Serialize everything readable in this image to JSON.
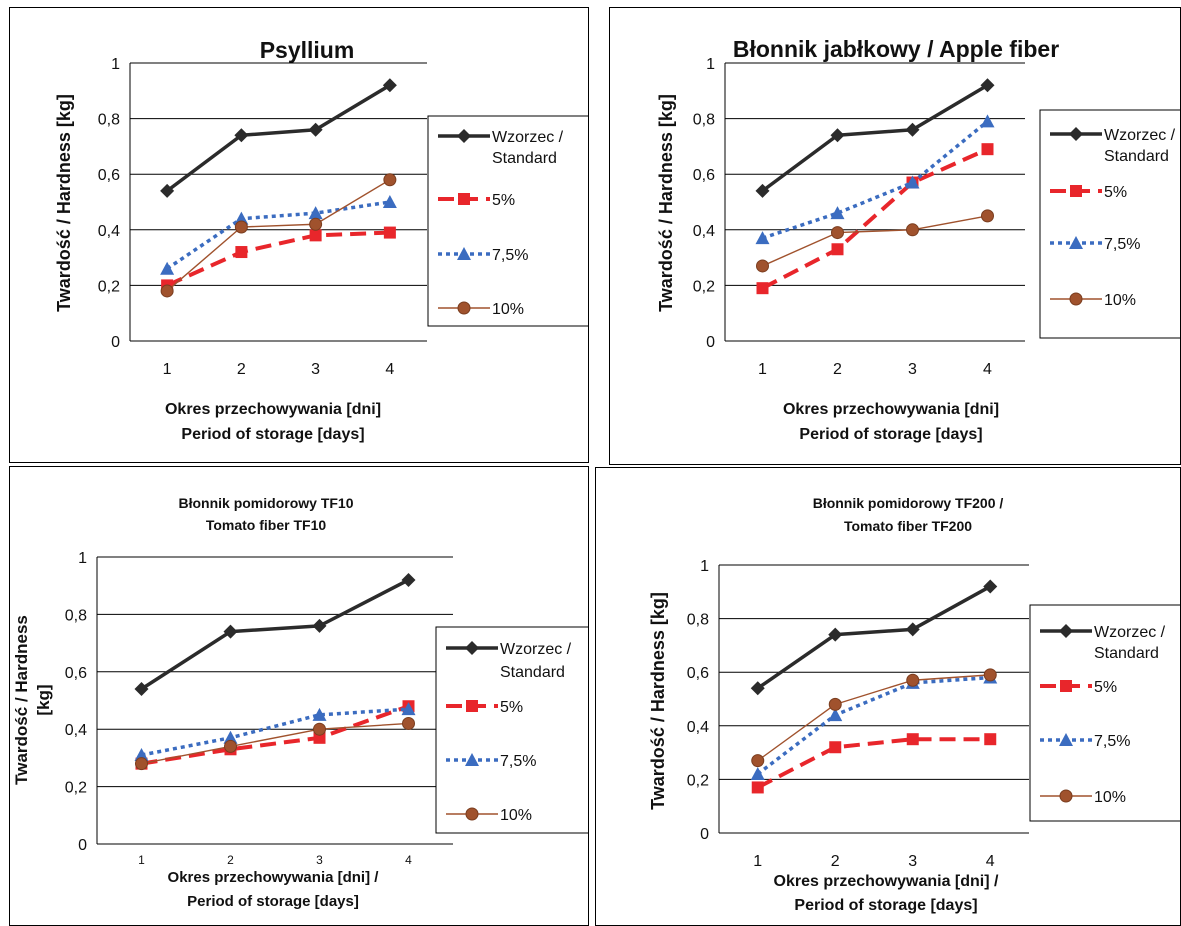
{
  "chart_data": [
    {
      "type": "line",
      "title": "Psyllium",
      "xlabel": [
        "Okres  przechowywania [dni]",
        "Period of storage [days]"
      ],
      "ylabel": [
        "Twardość / Hardness [kg]"
      ],
      "x": [
        "1",
        "2",
        "3",
        "4"
      ],
      "ylim": [
        0,
        1
      ],
      "yticks": [
        "0",
        "0,2",
        "0,4",
        "0,6",
        "0,8",
        "1"
      ],
      "grid": true,
      "legend": "right",
      "series": [
        {
          "name": [
            "Wzorzec /",
            "Standard"
          ],
          "values": [
            0.54,
            0.74,
            0.76,
            0.92
          ],
          "color": "#2b2b2b",
          "dash": "solid",
          "marker": "diamond"
        },
        {
          "name": [
            "5%"
          ],
          "values": [
            0.2,
            0.32,
            0.38,
            0.39
          ],
          "color": "#e8262b",
          "dash": "long",
          "marker": "square"
        },
        {
          "name": [
            "7,5%"
          ],
          "values": [
            0.26,
            0.44,
            0.46,
            0.5
          ],
          "color": "#3b6cc0",
          "dash": "dot",
          "marker": "triangle"
        },
        {
          "name": [
            "10%"
          ],
          "values": [
            0.18,
            0.41,
            0.42,
            0.58
          ],
          "color": "#a0522d",
          "dash": "thin",
          "marker": "circle"
        }
      ]
    },
    {
      "type": "line",
      "title": "Błonnik jabłkowy / Apple fiber",
      "xlabel": [
        "Okres  przechowywania [dni]",
        "Period of storage [days]"
      ],
      "ylabel": [
        "Twardość / Hardness [kg]"
      ],
      "x": [
        "1",
        "2",
        "3",
        "4"
      ],
      "ylim": [
        0,
        1
      ],
      "yticks": [
        "0",
        "0,2",
        "0,4",
        "0,6",
        "0,8",
        "1"
      ],
      "grid": true,
      "legend": "right",
      "series": [
        {
          "name": [
            "Wzorzec /",
            "Standard"
          ],
          "values": [
            0.54,
            0.74,
            0.76,
            0.92
          ],
          "color": "#2b2b2b",
          "dash": "solid",
          "marker": "diamond"
        },
        {
          "name": [
            "5%"
          ],
          "values": [
            0.19,
            0.33,
            0.57,
            0.69
          ],
          "color": "#e8262b",
          "dash": "long",
          "marker": "square"
        },
        {
          "name": [
            "7,5%"
          ],
          "values": [
            0.37,
            0.46,
            0.57,
            0.79
          ],
          "color": "#3b6cc0",
          "dash": "dot",
          "marker": "triangle"
        },
        {
          "name": [
            "10%"
          ],
          "values": [
            0.27,
            0.39,
            0.4,
            0.45
          ],
          "color": "#a0522d",
          "dash": "thin",
          "marker": "circle"
        }
      ]
    },
    {
      "type": "line",
      "title": [
        "Błonnik pomidorowy TF10",
        "Tomato fiber TF10"
      ],
      "xlabel": [
        "Okres  przechowywania [dni] /",
        "Period of storage [days]"
      ],
      "ylabel": [
        "Twardość / Hardness",
        "[kg]"
      ],
      "x": [
        "1",
        "2",
        "3",
        "4"
      ],
      "ylim": [
        0,
        1
      ],
      "yticks": [
        "0",
        "0,2",
        "0,4",
        "0,6",
        "0,8",
        "1"
      ],
      "grid": true,
      "legend": "right",
      "series": [
        {
          "name": [
            "Wzorzec /",
            "Standard"
          ],
          "values": [
            0.54,
            0.74,
            0.76,
            0.92
          ],
          "color": "#2b2b2b",
          "dash": "solid",
          "marker": "diamond"
        },
        {
          "name": [
            "5%"
          ],
          "values": [
            0.28,
            0.33,
            0.37,
            0.48
          ],
          "color": "#e8262b",
          "dash": "long",
          "marker": "square"
        },
        {
          "name": [
            "7,5%"
          ],
          "values": [
            0.31,
            0.37,
            0.45,
            0.47
          ],
          "color": "#3b6cc0",
          "dash": "dot",
          "marker": "triangle"
        },
        {
          "name": [
            "10%"
          ],
          "values": [
            0.28,
            0.34,
            0.4,
            0.42
          ],
          "color": "#a0522d",
          "dash": "thin",
          "marker": "circle"
        }
      ]
    },
    {
      "type": "line",
      "title": [
        "Błonnik pomidorowy TF200 /",
        "Tomato fiber TF200"
      ],
      "xlabel": [
        "Okres  przechowywania [dni] /",
        "Period of storage [days]"
      ],
      "ylabel": [
        "Twardość / Hardness [kg]"
      ],
      "x": [
        "1",
        "2",
        "3",
        "4"
      ],
      "ylim": [
        0,
        1
      ],
      "yticks": [
        "0",
        "0,2",
        "0,4",
        "0,6",
        "0,8",
        "1"
      ],
      "grid": true,
      "legend": "right",
      "series": [
        {
          "name": [
            "Wzorzec /",
            "Standard"
          ],
          "values": [
            0.54,
            0.74,
            0.76,
            0.92
          ],
          "color": "#2b2b2b",
          "dash": "solid",
          "marker": "diamond"
        },
        {
          "name": [
            "5%"
          ],
          "values": [
            0.17,
            0.32,
            0.35,
            0.35
          ],
          "color": "#e8262b",
          "dash": "long",
          "marker": "square"
        },
        {
          "name": [
            "7,5%"
          ],
          "values": [
            0.22,
            0.44,
            0.56,
            0.58
          ],
          "color": "#3b6cc0",
          "dash": "dot",
          "marker": "triangle"
        },
        {
          "name": [
            "10%"
          ],
          "values": [
            0.27,
            0.48,
            0.57,
            0.59
          ],
          "color": "#a0522d",
          "dash": "thin",
          "marker": "circle"
        }
      ]
    }
  ]
}
